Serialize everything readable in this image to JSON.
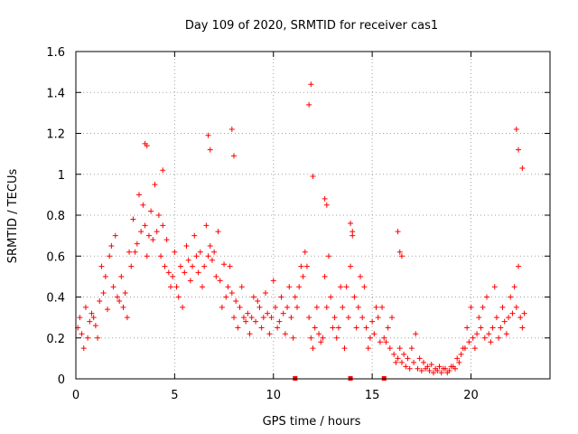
{
  "chart_data": {
    "type": "scatter",
    "title": "Day 109 of 2020, SRMTID for receiver cas1",
    "xlabel": "GPS time / hours",
    "ylabel": "SRMTID / TECUs",
    "xlim": [
      0,
      24
    ],
    "ylim": [
      0,
      1.6
    ],
    "xticks": [
      0,
      5,
      10,
      15,
      20
    ],
    "xtick_labels": [
      "0",
      "5",
      "10",
      "15",
      "20"
    ],
    "yticks": [
      0,
      0.2,
      0.4,
      0.6,
      0.8,
      1.0,
      1.2,
      1.4,
      1.6
    ],
    "ytick_labels": [
      "0",
      "0.2",
      "0.4",
      "0.6",
      "0.8",
      "1",
      "1.2",
      "1.4",
      "1.6"
    ],
    "grid": true,
    "marker": "+",
    "marker_color": "#ff0000",
    "series": [
      {
        "name": "SRMTID",
        "x": [
          0.1,
          0.3,
          0.5,
          0.7,
          0.9,
          1.1,
          1.3,
          1.5,
          1.7,
          1.9,
          2.1,
          2.3,
          2.5,
          2.7,
          2.9,
          3.1,
          3.3,
          3.5,
          3.7,
          3.9,
          4.1,
          4.3,
          4.5,
          4.7,
          4.9,
          5.1,
          5.3,
          5.5,
          5.7,
          5.9,
          6.1,
          6.3,
          6.5,
          6.7,
          6.9,
          7.1,
          7.3,
          7.5,
          7.7,
          7.9,
          8.1,
          8.3,
          8.5,
          8.7,
          8.9,
          9.1,
          9.3,
          9.5,
          9.7,
          9.9,
          10.1,
          10.3,
          10.5,
          10.7,
          10.9,
          11.1,
          11.3,
          11.5,
          11.7,
          11.9,
          12.1,
          12.3,
          12.5,
          12.7,
          12.9,
          13.1,
          13.3,
          13.5,
          13.7,
          13.9,
          14.1,
          14.3,
          14.5,
          14.7,
          14.9,
          15.1,
          15.3,
          15.5,
          15.7,
          15.9,
          16.1,
          16.3,
          16.5,
          16.7,
          16.9,
          17.1,
          17.3,
          17.5,
          17.7,
          17.9,
          18.1,
          18.3,
          18.5,
          18.7,
          18.9,
          19.1,
          19.3,
          19.5,
          19.7,
          19.9,
          20.1,
          20.3,
          20.5,
          20.7,
          20.9,
          21.1,
          21.3,
          21.5,
          21.7,
          21.9,
          22.1,
          22.3,
          22.5,
          22.7,
          0.2,
          0.4,
          0.6,
          0.8,
          1.0,
          1.2,
          1.4,
          1.6,
          1.8,
          2.0,
          2.2,
          2.4,
          2.6,
          2.8,
          3.0,
          3.2,
          3.4,
          3.6,
          3.8,
          4.0,
          4.2,
          4.4,
          4.6,
          4.8,
          5.0,
          5.2,
          5.4,
          5.6,
          5.8,
          6.0,
          6.2,
          6.4,
          6.6,
          6.8,
          7.0,
          7.2,
          7.4,
          7.6,
          7.8,
          8.0,
          8.2,
          8.4,
          8.6,
          8.8,
          9.0,
          9.2,
          9.4,
          9.6,
          9.8,
          10.0,
          10.2,
          10.4,
          10.6,
          10.8,
          11.0,
          11.2,
          11.4,
          11.6,
          11.8,
          12.0,
          12.2,
          12.4,
          12.6,
          12.8,
          13.0,
          13.2,
          13.4,
          13.6,
          13.8,
          14.0,
          14.2,
          14.4,
          14.6,
          14.8,
          15.0,
          15.2,
          15.4,
          15.6,
          15.8,
          16.0,
          16.2,
          16.4,
          16.6,
          16.8,
          17.0,
          17.2,
          17.4,
          17.6,
          17.8,
          18.0,
          18.2,
          18.4,
          18.6,
          18.8,
          19.0,
          19.2,
          19.4,
          19.6,
          19.8,
          20.0,
          20.2,
          20.4,
          20.6,
          20.8,
          21.0,
          21.2,
          21.4,
          21.6,
          21.8,
          22.0,
          22.2,
          22.4,
          22.6,
          3.5,
          3.6,
          4.4,
          6.7,
          6.8,
          7.9,
          8.0,
          11.8,
          11.9,
          12.0,
          22.3,
          22.4,
          22.6,
          12.6,
          12.7,
          13.9,
          14.0,
          16.3,
          16.4,
          16.5
        ],
        "y": [
          0.25,
          0.22,
          0.35,
          0.28,
          0.3,
          0.2,
          0.55,
          0.5,
          0.6,
          0.45,
          0.4,
          0.5,
          0.42,
          0.62,
          0.78,
          0.66,
          0.72,
          0.75,
          0.7,
          0.68,
          0.72,
          0.6,
          0.55,
          0.52,
          0.5,
          0.45,
          0.55,
          0.52,
          0.58,
          0.55,
          0.6,
          0.62,
          0.55,
          0.6,
          0.58,
          0.5,
          0.48,
          0.56,
          0.45,
          0.42,
          0.38,
          0.35,
          0.3,
          0.32,
          0.3,
          0.28,
          0.35,
          0.3,
          0.32,
          0.3,
          0.35,
          0.28,
          0.32,
          0.35,
          0.3,
          0.4,
          0.45,
          0.5,
          0.55,
          0.2,
          0.25,
          0.22,
          0.2,
          0.35,
          0.4,
          0.3,
          0.25,
          0.35,
          0.45,
          0.55,
          0.4,
          0.35,
          0.3,
          0.25,
          0.2,
          0.22,
          0.3,
          0.35,
          0.18,
          0.15,
          0.12,
          0.1,
          0.08,
          0.06,
          0.05,
          0.08,
          0.05,
          0.04,
          0.05,
          0.04,
          0.03,
          0.04,
          0.03,
          0.05,
          0.04,
          0.06,
          0.1,
          0.12,
          0.15,
          0.18,
          0.2,
          0.22,
          0.25,
          0.2,
          0.22,
          0.25,
          0.3,
          0.25,
          0.28,
          0.3,
          0.32,
          0.35,
          0.3,
          0.32,
          0.3,
          0.15,
          0.2,
          0.32,
          0.26,
          0.38,
          0.42,
          0.34,
          0.65,
          0.7,
          0.38,
          0.35,
          0.3,
          0.55,
          0.62,
          0.9,
          0.85,
          0.6,
          0.82,
          0.95,
          0.8,
          0.75,
          0.68,
          0.45,
          0.62,
          0.4,
          0.35,
          0.65,
          0.48,
          0.7,
          0.52,
          0.45,
          0.75,
          0.65,
          0.62,
          0.72,
          0.35,
          0.4,
          0.55,
          0.3,
          0.25,
          0.45,
          0.28,
          0.22,
          0.4,
          0.38,
          0.25,
          0.42,
          0.22,
          0.48,
          0.25,
          0.4,
          0.22,
          0.45,
          0.2,
          0.35,
          0.55,
          0.62,
          0.3,
          0.15,
          0.35,
          0.18,
          0.5,
          0.6,
          0.25,
          0.2,
          0.45,
          0.15,
          0.3,
          0.7,
          0.25,
          0.5,
          0.45,
          0.15,
          0.28,
          0.35,
          0.18,
          0.2,
          0.25,
          0.3,
          0.08,
          0.15,
          0.12,
          0.1,
          0.15,
          0.22,
          0.1,
          0.08,
          0.06,
          0.07,
          0.05,
          0.06,
          0.05,
          0.03,
          0.06,
          0.05,
          0.08,
          0.15,
          0.25,
          0.35,
          0.15,
          0.3,
          0.35,
          0.4,
          0.18,
          0.45,
          0.2,
          0.35,
          0.22,
          0.4,
          0.45,
          0.55,
          0.25,
          1.15,
          1.14,
          1.02,
          1.19,
          1.12,
          1.22,
          1.09,
          1.34,
          1.44,
          0.99,
          1.22,
          1.12,
          1.03,
          0.88,
          0.85,
          0.76,
          0.72,
          0.72,
          0.62,
          0.6
        ]
      }
    ],
    "baseline_markers": [
      11.1,
      13.9,
      15.6
    ]
  }
}
